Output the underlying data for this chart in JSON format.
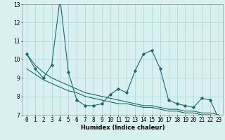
{
  "x": [
    0,
    1,
    2,
    3,
    4,
    5,
    6,
    7,
    8,
    9,
    10,
    11,
    12,
    13,
    14,
    15,
    16,
    17,
    18,
    19,
    20,
    21,
    22,
    23
  ],
  "y_main": [
    10.3,
    9.5,
    9.0,
    9.7,
    13.3,
    9.3,
    7.8,
    7.5,
    7.5,
    7.6,
    8.1,
    8.4,
    8.2,
    9.4,
    10.3,
    10.5,
    9.5,
    7.8,
    7.6,
    7.5,
    7.4,
    7.9,
    7.8,
    6.8
  ],
  "y_trend1": [
    10.3,
    9.7,
    9.3,
    9.0,
    8.8,
    8.6,
    8.4,
    8.2,
    8.1,
    8.0,
    7.9,
    7.8,
    7.7,
    7.6,
    7.5,
    7.5,
    7.4,
    7.3,
    7.3,
    7.2,
    7.2,
    7.1,
    7.1,
    7.0
  ],
  "y_trend2": [
    9.5,
    9.2,
    8.9,
    8.7,
    8.5,
    8.3,
    8.2,
    8.0,
    7.9,
    7.8,
    7.7,
    7.6,
    7.6,
    7.5,
    7.4,
    7.4,
    7.3,
    7.2,
    7.2,
    7.1,
    7.1,
    7.0,
    7.0,
    6.9
  ],
  "line_color": "#1a6b6b",
  "bg_color": "#d8f0f0",
  "grid_color": "#b0d8d8",
  "xlabel": "Humidex (Indice chaleur)",
  "ylim": [
    7,
    13
  ],
  "xlim_left": -0.5,
  "xlim_right": 23.5,
  "yticks": [
    7,
    8,
    9,
    10,
    11,
    12,
    13
  ],
  "xticks": [
    0,
    1,
    2,
    3,
    4,
    5,
    6,
    7,
    8,
    9,
    10,
    11,
    12,
    13,
    14,
    15,
    16,
    17,
    18,
    19,
    20,
    21,
    22,
    23
  ],
  "xtick_labels": [
    "0",
    "1",
    "2",
    "3",
    "4",
    "5",
    "6",
    "7",
    "8",
    "9",
    "10",
    "11",
    "12",
    "13",
    "14",
    "15",
    "16",
    "17",
    "18",
    "19",
    "20",
    "21",
    "22",
    "23"
  ],
  "label_fontsize": 6,
  "tick_fontsize": 5.5
}
